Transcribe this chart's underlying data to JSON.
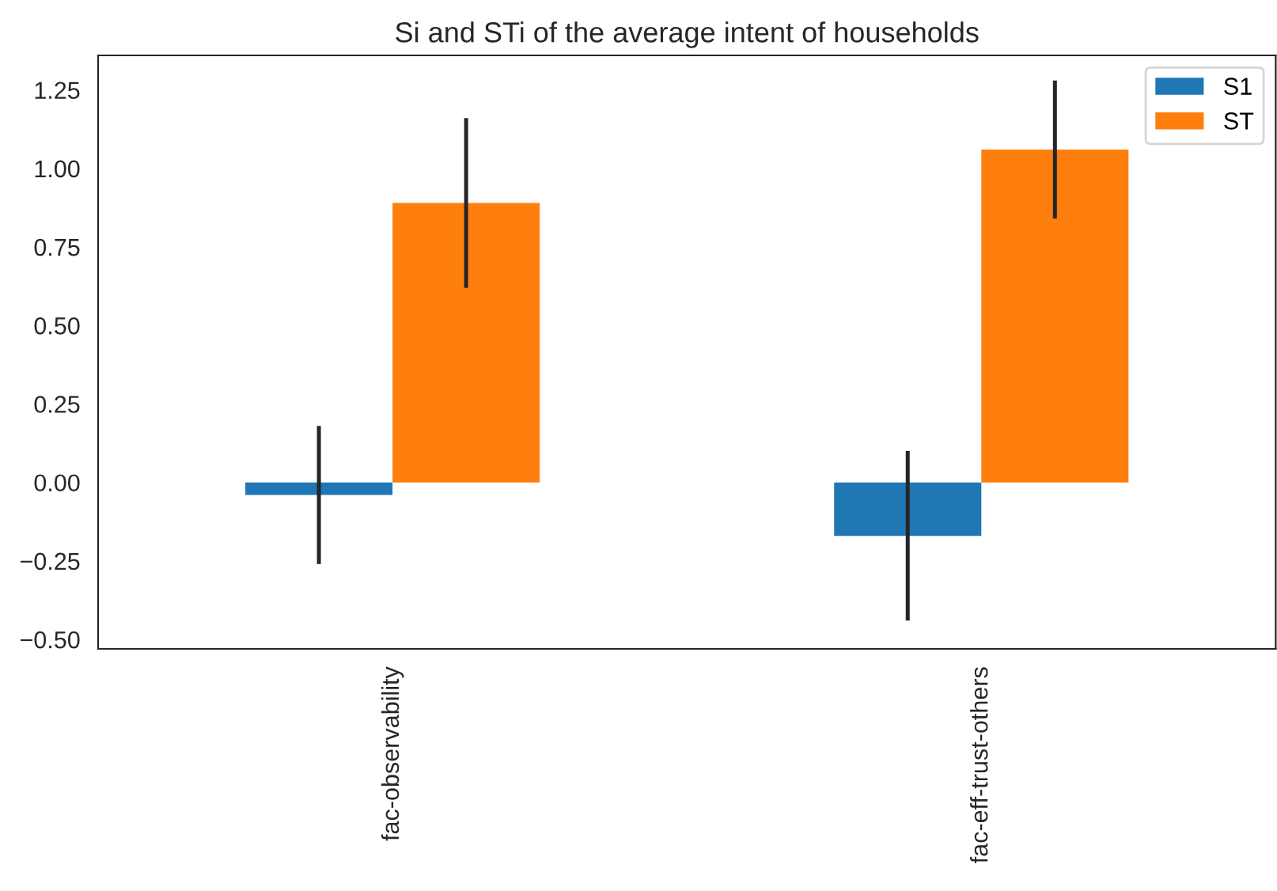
{
  "chart_data": {
    "type": "bar",
    "title": "Si and STi of the average intent of households",
    "categories": [
      "fac-observability",
      "fac-eff-trust-others"
    ],
    "series": [
      {
        "name": "S1",
        "color": "#1f77b4",
        "values": [
          -0.04,
          -0.17
        ],
        "errors": [
          0.22,
          0.27
        ]
      },
      {
        "name": "ST",
        "color": "#ff7f0e",
        "values": [
          0.89,
          1.06
        ],
        "errors": [
          0.27,
          0.22
        ]
      }
    ],
    "ylim": [
      -0.53,
      1.36
    ],
    "yticks": [
      {
        "value": -0.5,
        "label": "−0.50"
      },
      {
        "value": -0.25,
        "label": "−0.25"
      },
      {
        "value": 0,
        "label": "0.00"
      },
      {
        "value": 0.25,
        "label": "0.25"
      },
      {
        "value": 0.5,
        "label": "0.50"
      },
      {
        "value": 0.75,
        "label": "0.75"
      },
      {
        "value": 1.0,
        "label": "1.00"
      },
      {
        "value": 1.25,
        "label": "1.25"
      }
    ],
    "grid": false,
    "legend": "top right"
  }
}
